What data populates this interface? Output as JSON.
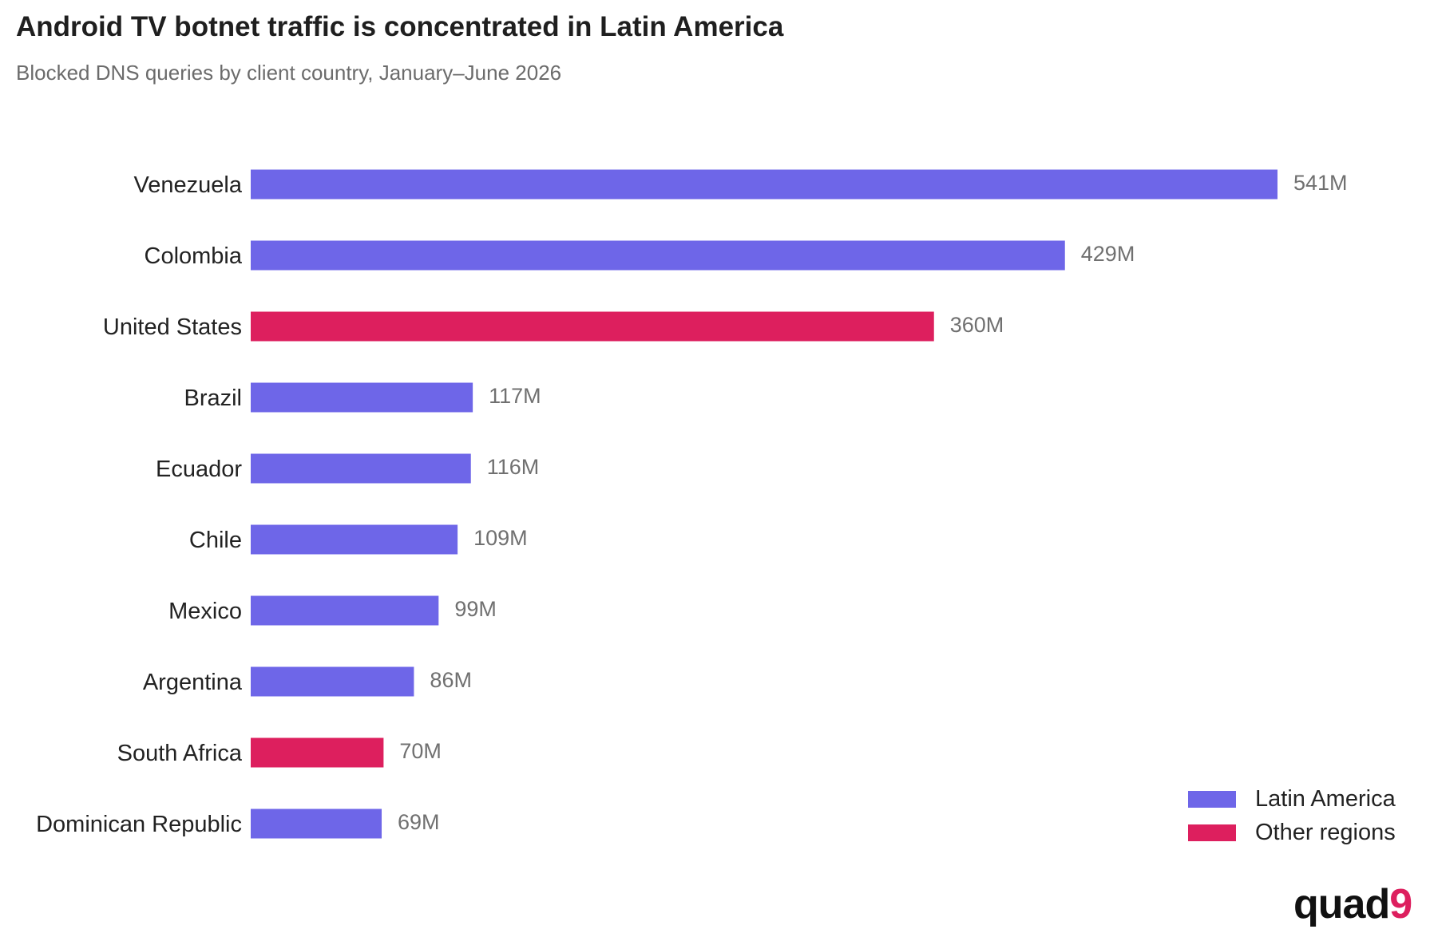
{
  "header": {
    "title": "Android TV botnet traffic is concentrated in Latin America",
    "subtitle": "Blocked DNS queries by client country, January–June 2026"
  },
  "chart_data": {
    "type": "bar",
    "orientation": "horizontal",
    "categories": [
      "Venezuela",
      "Colombia",
      "United States",
      "Brazil",
      "Ecuador",
      "Chile",
      "Mexico",
      "Argentina",
      "South Africa",
      "Dominican Republic"
    ],
    "values": [
      541,
      429,
      360,
      117,
      116,
      109,
      99,
      86,
      70,
      69
    ],
    "value_labels": [
      "541M",
      "429M",
      "360M",
      "117M",
      "116M",
      "109M",
      "99M",
      "86M",
      "70M",
      "69M"
    ],
    "regions": [
      "latam",
      "latam",
      "other",
      "latam",
      "latam",
      "latam",
      "latam",
      "latam",
      "other",
      "latam"
    ],
    "unit": "M",
    "xlim": [
      0,
      541
    ],
    "grid": false,
    "legend_position": "bottom-right",
    "series": [
      {
        "key": "latam",
        "name": "Latin America",
        "color": "#6e66e8"
      },
      {
        "key": "other",
        "name": "Other regions",
        "color": "#dd1f5e"
      }
    ]
  },
  "logo": {
    "text": "quad9",
    "text_color": "#111111",
    "accent_color": "#dd1f5e"
  }
}
